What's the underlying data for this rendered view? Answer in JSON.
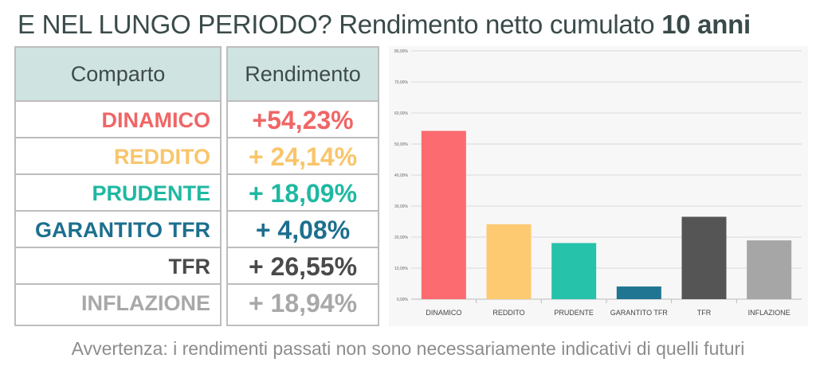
{
  "title": {
    "normal": "E NEL LUNGO PERIODO? Rendimento netto cumulato ",
    "bold": "10 anni"
  },
  "table": {
    "headers": [
      "Comparto",
      "Rendimento"
    ],
    "rows": [
      {
        "comparto": "DINAMICO",
        "rendimento": "+54,23%",
        "color": "#f06565"
      },
      {
        "comparto": "REDDITO",
        "rendimento": "+ 24,14%",
        "color": "#f9c56b"
      },
      {
        "comparto": "PRUDENTE",
        "rendimento": "+ 18,09%",
        "color": "#1fb8a2"
      },
      {
        "comparto": "GARANTITO TFR",
        "rendimento": "+ 4,08%",
        "color": "#1d6f8e"
      },
      {
        "comparto": "TFR",
        "rendimento": "+ 26,55%",
        "color": "#4a4a4a"
      },
      {
        "comparto": "INFLAZIONE",
        "rendimento": "+ 18,94%",
        "color": "#a8a8a8"
      }
    ]
  },
  "chart_data": {
    "type": "bar",
    "categories": [
      "DINAMICO",
      "REDDITO",
      "PRUDENTE",
      "GARANTITO TFR",
      "TFR",
      "INFLAZIONE"
    ],
    "values": [
      54.23,
      24.14,
      18.09,
      4.08,
      26.55,
      18.94
    ],
    "colors": [
      "#fb6b6f",
      "#fdca72",
      "#26c2aa",
      "#207592",
      "#555555",
      "#a6a6a6"
    ],
    "ylim": [
      0,
      80
    ],
    "yticks": [
      "0,00%",
      "10,00%",
      "20,00%",
      "30,00%",
      "40,00%",
      "50,00%",
      "60,00%",
      "70,00%",
      "80,00%"
    ],
    "grid": true,
    "xlabel": "",
    "ylabel": ""
  },
  "footer": "Avvertenza: i rendimenti passati non sono necessariamente indicativi di quelli futuri"
}
